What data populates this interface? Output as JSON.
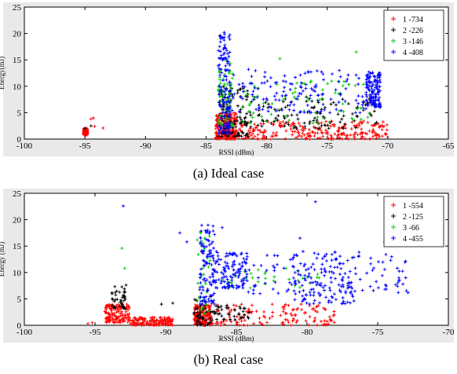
{
  "chart_data": [
    {
      "type": "scatter",
      "caption": "(a) Ideal case",
      "xlabel": "RSSI (dBm)",
      "ylabel": "Energy(mJ)",
      "xlim": [
        -100,
        -65
      ],
      "ylim": [
        0,
        25
      ],
      "xticks": [
        -100,
        -95,
        -90,
        -85,
        -80,
        -75,
        -70,
        -65
      ],
      "yticks": [
        0,
        5,
        10,
        15,
        20,
        25
      ],
      "xtick_labels": [
        "-100",
        "-95",
        "-90",
        "-85",
        "-80",
        "-75",
        "-70",
        "-65"
      ],
      "ytick_labels": [
        "0",
        "5",
        "10",
        "15",
        "20",
        "25"
      ],
      "legend_position": "top-right",
      "series": [
        {
          "name": "1 -734",
          "color": "#ff0000",
          "count": 734,
          "clusters": [
            {
              "x": [
                -95.1,
                -94.8
              ],
              "y": [
                0.8,
                2.0
              ]
            },
            {
              "x": [
                -84.2,
                -82.5
              ],
              "y": [
                0.0,
                5.0
              ]
            },
            {
              "x": [
                -82.5,
                -70.0
              ],
              "y": [
                0.0,
                3.5
              ]
            }
          ],
          "points": [
            [
              -94.3,
              4.0
            ],
            [
              -94.5,
              3.8
            ],
            [
              -93.5,
              2.1
            ],
            [
              -94.2,
              2.4
            ]
          ]
        },
        {
          "name": "2 -226",
          "color": "#000000",
          "count": 226,
          "clusters": [
            {
              "x": [
                -84.0,
                -81.5
              ],
              "y": [
                0.5,
                10.0
              ]
            },
            {
              "x": [
                -81.5,
                -70.8
              ],
              "y": [
                2.0,
                8.0
              ]
            }
          ],
          "points": [
            [
              -94.5,
              2.5
            ],
            [
              -95.0,
              2.0
            ]
          ]
        },
        {
          "name": "3 -146",
          "color": "#00cc00",
          "count": 146,
          "clusters": [
            {
              "x": [
                -84.0,
                -82.8
              ],
              "y": [
                2.0,
                15.0
              ]
            },
            {
              "x": [
                -82.0,
                -71.0
              ],
              "y": [
                3.0,
                11.0
              ]
            }
          ],
          "points": [
            [
              -78.9,
              15.2
            ],
            [
              -72.6,
              16.5
            ],
            [
              -77.5,
              10.6
            ],
            [
              -81.0,
              10.0
            ]
          ]
        },
        {
          "name": "4 -408",
          "color": "#0000ff",
          "count": 408,
          "clusters": [
            {
              "x": [
                -84.0,
                -83.0
              ],
              "y": [
                1.0,
                20.0
              ]
            },
            {
              "x": [
                -71.8,
                -70.6
              ],
              "y": [
                6.0,
                12.8
              ]
            },
            {
              "x": [
                -83.0,
                -71.8
              ],
              "y": [
                5.0,
                13.0
              ]
            }
          ],
          "points": [
            [
              -83.5,
              20.2
            ],
            [
              -81.5,
              13.2
            ],
            [
              -74.0,
              13.0
            ]
          ]
        }
      ]
    },
    {
      "type": "scatter",
      "caption": "(b) Real case",
      "xlabel": "RSSI (dBm)",
      "ylabel": "Energy (mJ)",
      "xlim": [
        -100,
        -70
      ],
      "ylim": [
        0,
        25
      ],
      "xticks": [
        -100,
        -95,
        -90,
        -85,
        -80,
        -75,
        -70
      ],
      "yticks": [
        0,
        5,
        10,
        15,
        20,
        25
      ],
      "xtick_labels": [
        "-100",
        "-95",
        "-90",
        "-85",
        "-80",
        "-75",
        "-70"
      ],
      "ytick_labels": [
        "0",
        "5",
        "10",
        "15",
        "20",
        "25"
      ],
      "legend_position": "top-right",
      "series": [
        {
          "name": "1 -554",
          "color": "#ff0000",
          "count": 554,
          "clusters": [
            {
              "x": [
                -94.3,
                -92.5
              ],
              "y": [
                0.5,
                4.0
              ]
            },
            {
              "x": [
                -92.5,
                -89.5
              ],
              "y": [
                0.0,
                1.5
              ]
            },
            {
              "x": [
                -88.0,
                -86.8
              ],
              "y": [
                0.0,
                4.0
              ]
            },
            {
              "x": [
                -87.0,
                -78.0
              ],
              "y": [
                0.0,
                4.0
              ]
            }
          ],
          "points": [
            [
              -95.5,
              0.3
            ],
            [
              -95.2,
              0.5
            ]
          ]
        },
        {
          "name": "2 -125",
          "color": "#000000",
          "count": 125,
          "clusters": [
            {
              "x": [
                -93.8,
                -92.8
              ],
              "y": [
                3.0,
                8.0
              ]
            },
            {
              "x": [
                -88.0,
                -86.8
              ],
              "y": [
                0.0,
                5.5
              ]
            },
            {
              "x": [
                -86.8,
                -84.0
              ],
              "y": [
                1.0,
                4.0
              ]
            }
          ],
          "points": [
            [
              -90.3,
              4.0
            ],
            [
              -89.5,
              4.2
            ]
          ]
        },
        {
          "name": "3 -66",
          "color": "#00cc00",
          "count": 66,
          "clusters": [
            {
              "x": [
                -87.8,
                -86.8
              ],
              "y": [
                2.0,
                18.0
              ]
            },
            {
              "x": [
                -86.0,
                -79.0
              ],
              "y": [
                7.0,
                11.0
              ]
            }
          ],
          "points": [
            [
              -93.1,
              14.6
            ],
            [
              -92.9,
              10.8
            ]
          ]
        },
        {
          "name": "4 -455",
          "color": "#0000ff",
          "count": 455,
          "clusters": [
            {
              "x": [
                -87.6,
                -86.5
              ],
              "y": [
                4.0,
                19.0
              ]
            },
            {
              "x": [
                -86.5,
                -84.2
              ],
              "y": [
                7.0,
                14.0
              ]
            },
            {
              "x": [
                -81.0,
                -76.5
              ],
              "y": [
                4.0,
                13.5
              ]
            },
            {
              "x": [
                -84.2,
                -72.8
              ],
              "y": [
                6.0,
                14.0
              ]
            }
          ],
          "points": [
            [
              -93.0,
              22.6
            ],
            [
              -89.0,
              17.5
            ],
            [
              -88.5,
              15.8
            ],
            [
              -79.4,
              23.4
            ],
            [
              -80.5,
              16.5
            ],
            [
              -86.0,
              18.5
            ],
            [
              -74.5,
              15.8
            ]
          ]
        }
      ]
    }
  ]
}
